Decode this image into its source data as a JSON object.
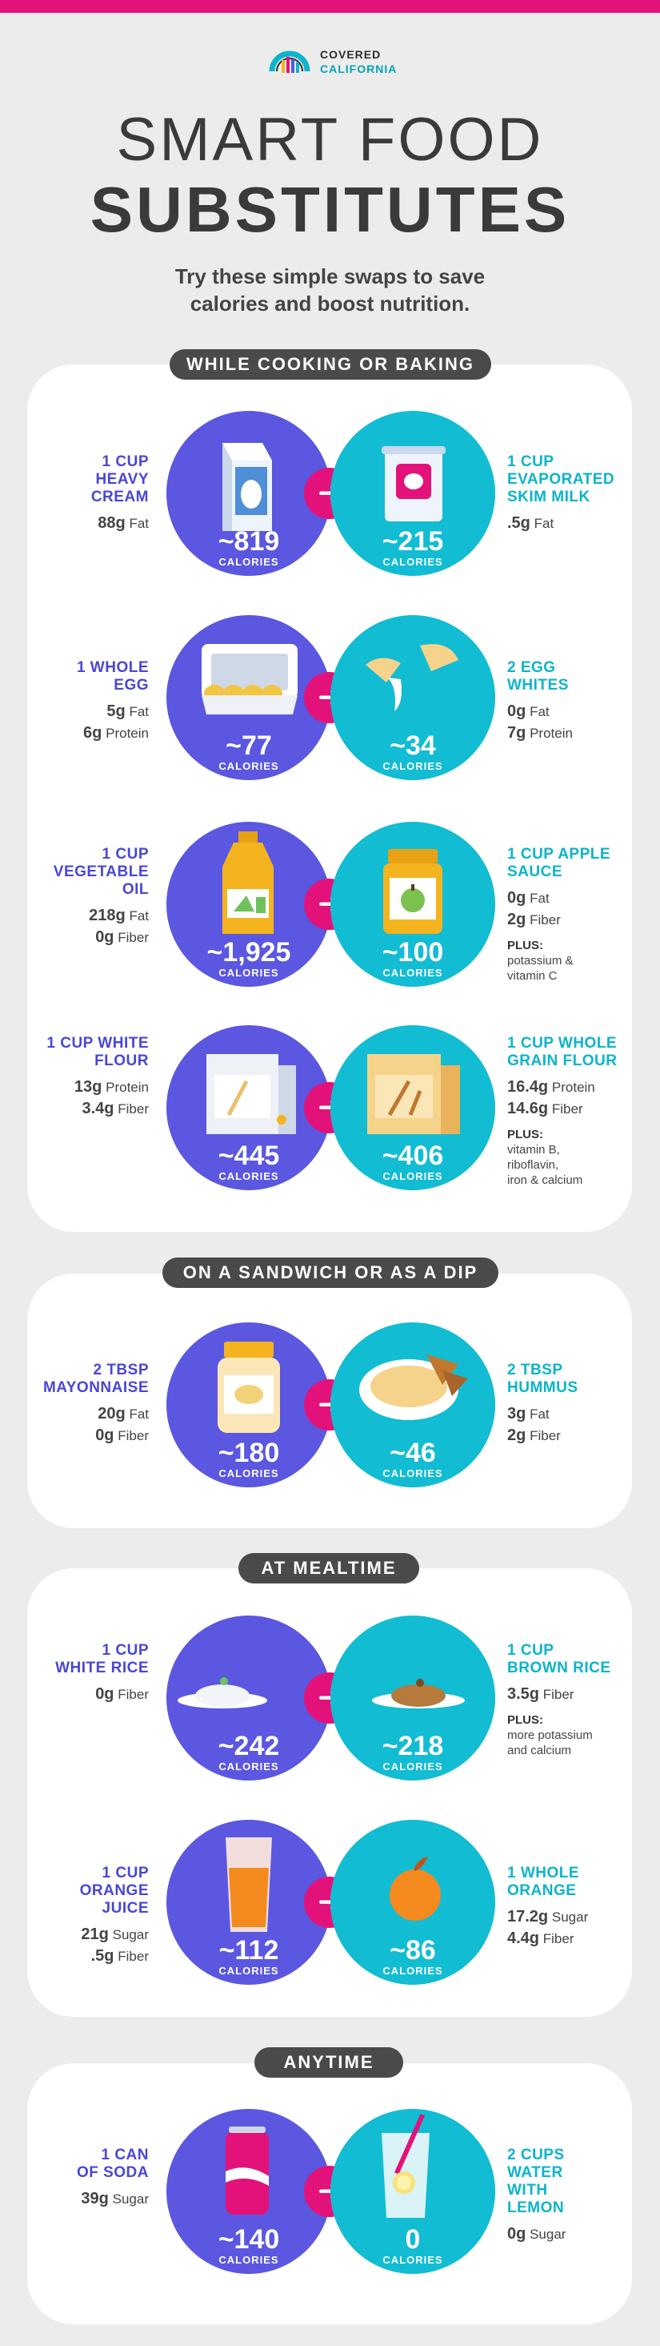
{
  "brand": {
    "line1": "COVERED",
    "line2": "CALIFORNIA"
  },
  "title": {
    "line1": "SMART FOOD",
    "line2": "SUBSTITUTES"
  },
  "subtitle": {
    "line1": "Try these simple swaps to save",
    "line2": "calories and boost nutrition."
  },
  "calories_label": "CALORIES",
  "arrow_glyph": "➜",
  "colors": {
    "accent": "#e3127a",
    "purple": "#5b57e0",
    "teal": "#12bcd3",
    "dark": "#4a4a4a"
  },
  "sections": [
    {
      "heading": "WHILE COOKING OR BAKING",
      "swaps": [
        {
          "from": {
            "name": [
              "1 CUP",
              "HEAVY",
              "CREAM"
            ],
            "stats": [
              [
                "88g",
                "Fat"
              ]
            ],
            "calories": "~819",
            "icon": "milk-carton-icon"
          },
          "to": {
            "name": [
              "1 CUP",
              "EVAPORATED",
              "SKIM MILK"
            ],
            "stats": [
              [
                ".5g",
                "Fat"
              ]
            ],
            "calories": "~215",
            "icon": "milk-can-icon"
          }
        },
        {
          "from": {
            "name": [
              "1 WHOLE",
              "EGG"
            ],
            "stats": [
              [
                "5g",
                "Fat"
              ],
              [
                "6g",
                "Protein"
              ]
            ],
            "calories": "~77",
            "icon": "egg-carton-icon"
          },
          "to": {
            "name": [
              "2 EGG",
              "WHITES"
            ],
            "stats": [
              [
                "0g",
                "Fat"
              ],
              [
                "7g",
                "Protein"
              ]
            ],
            "calories": "~34",
            "icon": "cracked-egg-icon"
          }
        },
        {
          "from": {
            "name": [
              "1 CUP",
              "VEGETABLE",
              "OIL"
            ],
            "stats": [
              [
                "218g",
                "Fat"
              ],
              [
                "0g",
                "Fiber"
              ]
            ],
            "calories": "~1,925",
            "icon": "oil-bottle-icon"
          },
          "to": {
            "name": [
              "1 CUP APPLE",
              "SAUCE"
            ],
            "stats": [
              [
                "0g",
                "Fat"
              ],
              [
                "2g",
                "Fiber"
              ]
            ],
            "plus_heading": "PLUS:",
            "plus": [
              "potassium &",
              "vitamin C"
            ],
            "calories": "~100",
            "icon": "applesauce-jar-icon"
          }
        },
        {
          "from": {
            "name": [
              "1 CUP WHITE",
              "FLOUR"
            ],
            "stats": [
              [
                "13g",
                "Protein"
              ],
              [
                "3.4g",
                "Fiber"
              ]
            ],
            "calories": "~445",
            "icon": "white-flour-bag-icon"
          },
          "to": {
            "name": [
              "1 CUP WHOLE",
              "GRAIN FLOUR"
            ],
            "stats": [
              [
                "16.4g",
                "Protein"
              ],
              [
                "14.6g",
                "Fiber"
              ]
            ],
            "plus_heading": "PLUS:",
            "plus": [
              "vitamin B,",
              "riboflavin,",
              "iron & calcium"
            ],
            "calories": "~406",
            "icon": "wheat-flour-bag-icon"
          }
        }
      ]
    },
    {
      "heading": "ON A SANDWICH OR AS A DIP",
      "swaps": [
        {
          "from": {
            "name": [
              "2 TBSP",
              "MAYONNAISE"
            ],
            "stats": [
              [
                "20g",
                "Fat"
              ],
              [
                "0g",
                "Fiber"
              ]
            ],
            "calories": "~180",
            "icon": "mayo-jar-icon"
          },
          "to": {
            "name": [
              "2 TBSP",
              "HUMMUS"
            ],
            "stats": [
              [
                "3g",
                "Fat"
              ],
              [
                "2g",
                "Fiber"
              ]
            ],
            "calories": "~46",
            "icon": "hummus-bowl-icon"
          }
        }
      ]
    },
    {
      "heading": "AT MEALTIME",
      "swaps": [
        {
          "from": {
            "name": [
              "1 CUP",
              "WHITE RICE"
            ],
            "stats": [
              [
                "0g",
                "Fiber"
              ]
            ],
            "calories": "~242",
            "icon": "white-rice-plate-icon"
          },
          "to": {
            "name": [
              "1 CUP",
              "BROWN RICE"
            ],
            "stats": [
              [
                "3.5g",
                "Fiber"
              ]
            ],
            "plus_heading": "PLUS:",
            "plus": [
              "more potassium",
              "and calcium"
            ],
            "calories": "~218",
            "icon": "brown-rice-plate-icon"
          }
        },
        {
          "from": {
            "name": [
              "1 CUP",
              "ORANGE",
              "JUICE"
            ],
            "stats": [
              [
                "21g",
                "Sugar"
              ],
              [
                ".5g",
                "Fiber"
              ]
            ],
            "calories": "~112",
            "icon": "juice-glass-icon"
          },
          "to": {
            "name": [
              "1 WHOLE",
              "ORANGE"
            ],
            "stats": [
              [
                "17.2g",
                "Sugar"
              ],
              [
                "4.4g",
                "Fiber"
              ]
            ],
            "calories": "~86",
            "icon": "orange-icon"
          }
        }
      ]
    },
    {
      "heading": "ANYTIME",
      "swaps": [
        {
          "from": {
            "name": [
              "1 CAN",
              "OF SODA"
            ],
            "stats": [
              [
                "39g",
                "Sugar"
              ]
            ],
            "calories": "~140",
            "icon": "soda-can-icon"
          },
          "to": {
            "name": [
              "2 CUPS",
              "WATER",
              "WITH",
              "LEMON"
            ],
            "stats": [
              [
                "0g",
                "Sugar"
              ]
            ],
            "calories": "0",
            "icon": "lemon-water-glass-icon"
          }
        }
      ]
    }
  ]
}
